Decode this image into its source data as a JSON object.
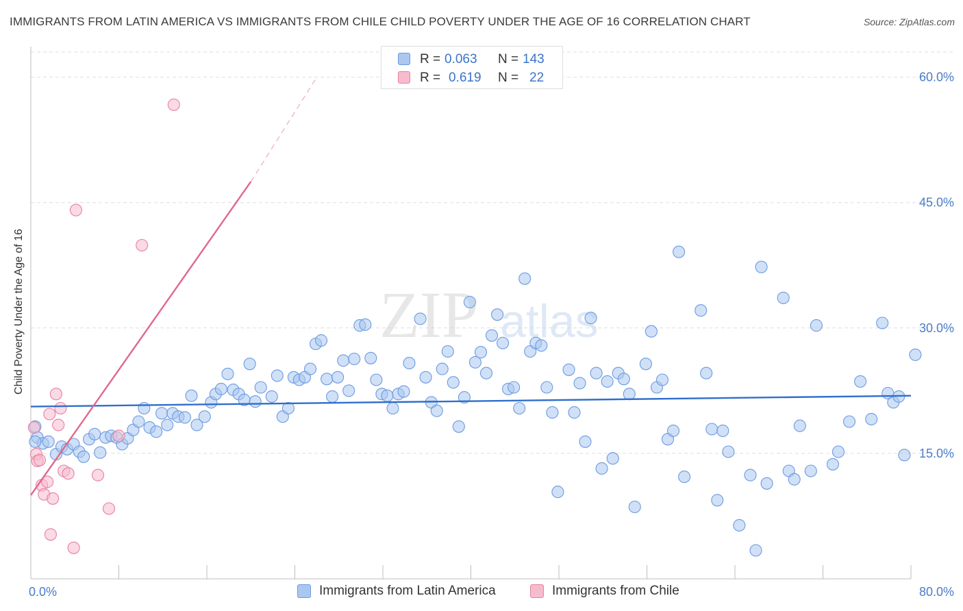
{
  "chart_data": {
    "type": "scatter",
    "title": "IMMIGRANTS FROM LATIN AMERICA VS IMMIGRANTS FROM CHILE CHILD POVERTY UNDER THE AGE OF 16 CORRELATION CHART",
    "source": "Source: ZipAtlas.com",
    "xlabel": "",
    "ylabel": "Child Poverty Under the Age of 16",
    "xlim": [
      0,
      80
    ],
    "ylim": [
      0,
      63
    ],
    "x_tick_labels": [
      "0.0%",
      "80.0%"
    ],
    "y_ticks": [
      15,
      30,
      45,
      60
    ],
    "y_tick_labels": [
      "15.0%",
      "30.0%",
      "45.0%",
      "60.0%"
    ],
    "grid": true,
    "watermark": {
      "part1": "ZIP",
      "part2": "atlas"
    },
    "legend": {
      "r_label": "R =",
      "n_label": "N =",
      "entries": [
        {
          "r": "0.063",
          "n": "143"
        },
        {
          "r": "0.619",
          "n": "22"
        }
      ]
    },
    "series": [
      {
        "name": "Immigrants from Latin America",
        "color": "#6a9be0",
        "fill": "#aac7f0",
        "trend": {
          "x": [
            0,
            80
          ],
          "y": [
            20.6,
            21.9
          ],
          "color": "#2f6ecc"
        },
        "points": [
          [
            0.4,
            18.2
          ],
          [
            0.6,
            16.9
          ],
          [
            1.1,
            16.2
          ],
          [
            1.6,
            16.4
          ],
          [
            2.3,
            14.9
          ],
          [
            2.8,
            15.8
          ],
          [
            3.3,
            15.5
          ],
          [
            3.9,
            16.1
          ],
          [
            4.4,
            15.2
          ],
          [
            4.8,
            14.6
          ],
          [
            5.3,
            16.7
          ],
          [
            5.8,
            17.3
          ],
          [
            6.3,
            15.1
          ],
          [
            6.8,
            16.9
          ],
          [
            7.3,
            17.1
          ],
          [
            7.8,
            16.9
          ],
          [
            8.3,
            16.1
          ],
          [
            8.8,
            16.8
          ],
          [
            9.3,
            17.8
          ],
          [
            9.8,
            18.8
          ],
          [
            10.3,
            20.4
          ],
          [
            10.8,
            18.1
          ],
          [
            11.4,
            17.6
          ],
          [
            11.9,
            19.8
          ],
          [
            12.4,
            18.4
          ],
          [
            12.9,
            19.8
          ],
          [
            13.4,
            19.4
          ],
          [
            14.0,
            19.3
          ],
          [
            14.6,
            21.9
          ],
          [
            15.1,
            18.4
          ],
          [
            15.8,
            19.4
          ],
          [
            16.4,
            21.1
          ],
          [
            16.8,
            22.1
          ],
          [
            17.3,
            22.7
          ],
          [
            17.9,
            24.5
          ],
          [
            18.4,
            22.6
          ],
          [
            18.9,
            22.1
          ],
          [
            19.4,
            21.4
          ],
          [
            19.9,
            25.7
          ],
          [
            20.4,
            21.2
          ],
          [
            20.9,
            22.9
          ],
          [
            21.9,
            21.8
          ],
          [
            22.4,
            24.3
          ],
          [
            22.9,
            19.4
          ],
          [
            23.4,
            20.4
          ],
          [
            23.9,
            24.1
          ],
          [
            24.4,
            23.8
          ],
          [
            24.9,
            24.1
          ],
          [
            25.4,
            25.1
          ],
          [
            25.9,
            28.1
          ],
          [
            26.4,
            28.5
          ],
          [
            26.9,
            23.9
          ],
          [
            27.4,
            21.8
          ],
          [
            27.9,
            24.1
          ],
          [
            28.4,
            26.1
          ],
          [
            28.9,
            22.5
          ],
          [
            29.4,
            26.3
          ],
          [
            29.9,
            30.3
          ],
          [
            30.4,
            30.4
          ],
          [
            30.9,
            26.4
          ],
          [
            31.4,
            23.8
          ],
          [
            31.9,
            22.1
          ],
          [
            32.4,
            21.9
          ],
          [
            32.9,
            20.4
          ],
          [
            33.4,
            22.1
          ],
          [
            33.9,
            22.4
          ],
          [
            34.4,
            25.8
          ],
          [
            35.4,
            31.1
          ],
          [
            35.9,
            24.1
          ],
          [
            36.4,
            21.1
          ],
          [
            36.9,
            20.1
          ],
          [
            37.4,
            25.1
          ],
          [
            37.9,
            27.2
          ],
          [
            38.4,
            23.5
          ],
          [
            38.9,
            18.2
          ],
          [
            39.4,
            21.7
          ],
          [
            39.9,
            33.1
          ],
          [
            40.4,
            25.9
          ],
          [
            40.9,
            27.1
          ],
          [
            41.4,
            24.6
          ],
          [
            41.9,
            29.1
          ],
          [
            42.4,
            31.6
          ],
          [
            42.9,
            28.2
          ],
          [
            43.4,
            22.7
          ],
          [
            43.9,
            22.9
          ],
          [
            44.4,
            20.4
          ],
          [
            44.9,
            35.9
          ],
          [
            45.4,
            27.2
          ],
          [
            45.9,
            28.2
          ],
          [
            46.4,
            27.9
          ],
          [
            46.9,
            22.9
          ],
          [
            47.4,
            19.9
          ],
          [
            47.9,
            10.4
          ],
          [
            48.9,
            25.0
          ],
          [
            49.4,
            19.9
          ],
          [
            49.9,
            23.4
          ],
          [
            50.4,
            16.4
          ],
          [
            50.9,
            31.2
          ],
          [
            51.4,
            24.6
          ],
          [
            51.9,
            13.2
          ],
          [
            52.4,
            23.6
          ],
          [
            52.9,
            14.4
          ],
          [
            53.4,
            24.6
          ],
          [
            53.9,
            23.9
          ],
          [
            54.4,
            22.1
          ],
          [
            54.9,
            8.6
          ],
          [
            55.9,
            25.7
          ],
          [
            56.4,
            29.6
          ],
          [
            56.9,
            22.9
          ],
          [
            57.4,
            23.8
          ],
          [
            57.9,
            16.7
          ],
          [
            58.4,
            17.7
          ],
          [
            58.9,
            39.1
          ],
          [
            59.4,
            12.2
          ],
          [
            60.9,
            32.1
          ],
          [
            61.4,
            24.6
          ],
          [
            61.9,
            17.9
          ],
          [
            62.4,
            9.4
          ],
          [
            62.9,
            17.7
          ],
          [
            63.4,
            15.2
          ],
          [
            64.4,
            6.4
          ],
          [
            65.4,
            12.4
          ],
          [
            65.9,
            3.4
          ],
          [
            66.4,
            37.3
          ],
          [
            66.9,
            11.4
          ],
          [
            68.4,
            33.6
          ],
          [
            68.9,
            12.9
          ],
          [
            69.4,
            11.9
          ],
          [
            69.9,
            18.3
          ],
          [
            70.9,
            12.9
          ],
          [
            71.4,
            30.3
          ],
          [
            72.9,
            13.7
          ],
          [
            73.4,
            15.2
          ],
          [
            74.4,
            18.8
          ],
          [
            75.4,
            23.6
          ],
          [
            76.4,
            19.1
          ],
          [
            77.4,
            30.6
          ],
          [
            77.9,
            22.2
          ],
          [
            78.4,
            21.1
          ],
          [
            78.9,
            21.8
          ],
          [
            79.4,
            14.8
          ],
          [
            80.4,
            26.8
          ],
          [
            0.4,
            16.4
          ]
        ]
      },
      {
        "name": "Immigrants from Chile",
        "color": "#e87fa0",
        "fill": "#f6bccd",
        "trend": {
          "x": [
            0,
            20
          ],
          "y": [
            10.0,
            47.5
          ],
          "x_dashed_end": 26,
          "y_dashed_end": 60.0,
          "color": "#e0678d"
        },
        "points": [
          [
            0.3,
            18.1
          ],
          [
            0.5,
            14.9
          ],
          [
            0.6,
            14.1
          ],
          [
            0.8,
            14.2
          ],
          [
            1.0,
            11.2
          ],
          [
            1.2,
            10.1
          ],
          [
            1.5,
            11.6
          ],
          [
            1.8,
            5.3
          ],
          [
            2.0,
            9.6
          ],
          [
            2.3,
            22.1
          ],
          [
            2.5,
            18.4
          ],
          [
            2.7,
            20.4
          ],
          [
            3.0,
            12.9
          ],
          [
            3.4,
            12.6
          ],
          [
            3.9,
            3.7
          ],
          [
            4.1,
            44.1
          ],
          [
            6.1,
            12.4
          ],
          [
            7.1,
            8.4
          ],
          [
            8.0,
            17.1
          ],
          [
            10.1,
            39.9
          ],
          [
            13.0,
            56.7
          ],
          [
            1.7,
            19.7
          ]
        ]
      }
    ]
  }
}
